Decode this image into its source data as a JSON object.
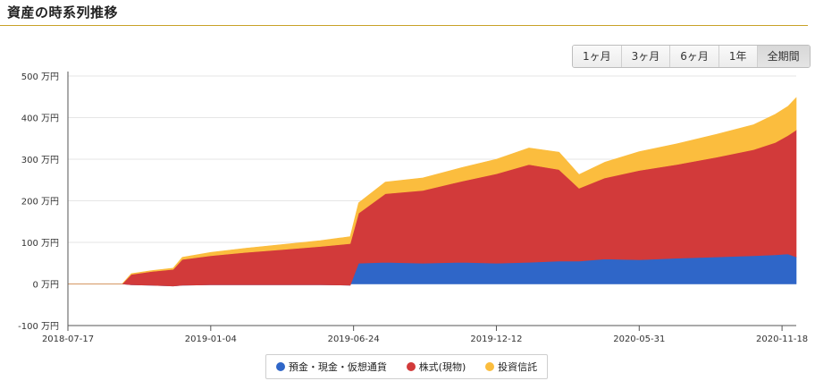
{
  "header": {
    "title": "資産の時系列推移"
  },
  "range_buttons": {
    "m1": "1ヶ月",
    "m3": "3ヶ月",
    "m6": "6ヶ月",
    "y1": "1年",
    "all": "全期間",
    "active": "全期間"
  },
  "colors": {
    "cash": "#2f66c8",
    "stocks": "#d23a3a",
    "funds": "#fbbd3e",
    "header_rule": "#c9a227"
  },
  "chart_data": {
    "type": "area",
    "stacked": true,
    "unit": "万円",
    "ylim": [
      -100,
      500
    ],
    "yticks": [
      -100,
      0,
      100,
      200,
      300,
      400,
      500
    ],
    "ytick_labels": [
      "-100 万円",
      "0 万円",
      "100 万円",
      "200 万円",
      "300 万円",
      "400 万円",
      "500 万円"
    ],
    "xlim": [
      "2018-07-17",
      "2020-12-05"
    ],
    "xticks": [
      "2018-07-17",
      "2019-01-04",
      "2019-06-24",
      "2019-12-12",
      "2020-05-31",
      "2020-11-18"
    ],
    "grid": true,
    "legend_position": "bottom",
    "x": [
      "2018-07-17",
      "2018-08-15",
      "2018-09-10",
      "2018-09-20",
      "2018-10-01",
      "2018-10-25",
      "2018-11-20",
      "2018-12-01",
      "2019-01-04",
      "2019-02-15",
      "2019-04-01",
      "2019-05-15",
      "2019-06-20",
      "2019-06-30",
      "2019-08-01",
      "2019-09-15",
      "2019-11-01",
      "2019-12-12",
      "2020-01-20",
      "2020-02-25",
      "2020-03-20",
      "2020-04-20",
      "2020-05-31",
      "2020-07-15",
      "2020-09-01",
      "2020-10-15",
      "2020-11-10",
      "2020-11-25",
      "2020-12-05"
    ],
    "series": [
      {
        "name": "預金・現金・仮想通貨",
        "values": [
          0,
          0,
          0,
          0,
          -2,
          -3,
          -5,
          -3,
          -2,
          -2,
          -2,
          -2,
          -3,
          50,
          52,
          50,
          52,
          50,
          52,
          55,
          55,
          60,
          58,
          62,
          65,
          68,
          70,
          72,
          65
        ]
      },
      {
        "name": "株式(現物)",
        "values": [
          0,
          0,
          0,
          0,
          25,
          33,
          40,
          62,
          70,
          78,
          85,
          92,
          100,
          120,
          165,
          175,
          195,
          215,
          235,
          220,
          175,
          195,
          215,
          225,
          240,
          255,
          270,
          285,
          305
        ]
      },
      {
        "name": "投資信託",
        "values": [
          0,
          0,
          0,
          0,
          2,
          2,
          3,
          5,
          8,
          10,
          12,
          14,
          17,
          25,
          28,
          30,
          33,
          35,
          40,
          42,
          33,
          38,
          45,
          50,
          55,
          60,
          68,
          70,
          78
        ]
      }
    ]
  }
}
